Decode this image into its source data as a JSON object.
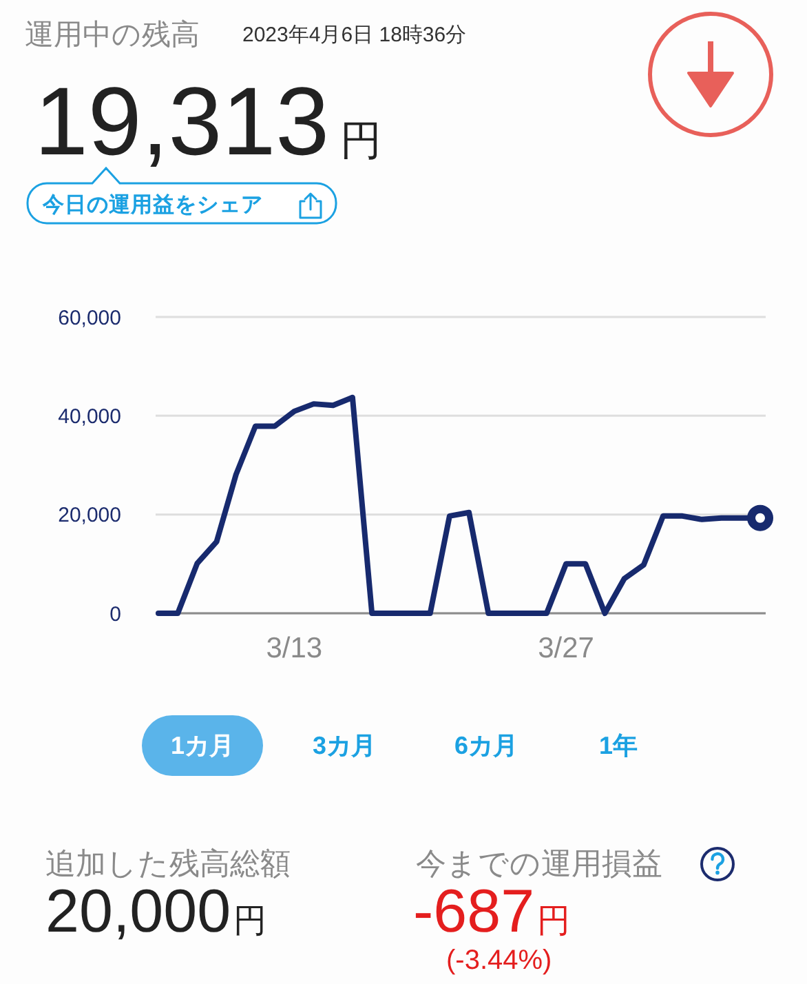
{
  "chart_data": {
    "type": "line",
    "title": "運用中の残高",
    "subtitle": "2023年4月6日 18時36分",
    "categories": [
      null,
      null,
      null,
      null,
      null,
      null,
      null,
      "3/13",
      null,
      null,
      null,
      null,
      null,
      null,
      null,
      null,
      null,
      null,
      null,
      null,
      null,
      "3/27",
      null,
      null,
      null,
      null,
      null,
      null,
      null,
      null,
      null,
      null
    ],
    "series": [
      {
        "type": "line",
        "color": "#172a6e",
        "values": [
          0,
          0,
          10100,
          14500,
          28100,
          37900,
          37900,
          40900,
          42400,
          42100,
          43700,
          0,
          0,
          0,
          0,
          19700,
          20400,
          0,
          0,
          0,
          0,
          10000,
          10000,
          0,
          7000,
          9800,
          19700,
          19700,
          19000,
          19300,
          19300,
          19300
        ]
      },
      {
        "type": "scatter",
        "color": "#172a6e",
        "marker": "circle",
        "values": [
          null,
          null,
          null,
          null,
          null,
          null,
          null,
          null,
          null,
          null,
          null,
          null,
          null,
          null,
          null,
          null,
          null,
          null,
          null,
          null,
          null,
          null,
          null,
          null,
          null,
          null,
          null,
          null,
          null,
          null,
          null,
          19300
        ]
      }
    ],
    "ylim": [
      0,
      60000
    ],
    "yticks": [
      0,
      {
        "value": 20000,
        "label": "20,000"
      },
      {
        "value": 40000,
        "label": "40,000"
      },
      {
        "value": 60000,
        "label": "60,000"
      }
    ],
    "grid": "y",
    "annotations": [
      "19,313",
      "円",
      "今日の運用益をシェア",
      "1カ月",
      "3カ月",
      "6カ月",
      "1年",
      "追加した残高総額",
      "20,000",
      "円",
      "今までの運用損益",
      "-687",
      "円",
      "(-3.44%)"
    ]
  }
}
